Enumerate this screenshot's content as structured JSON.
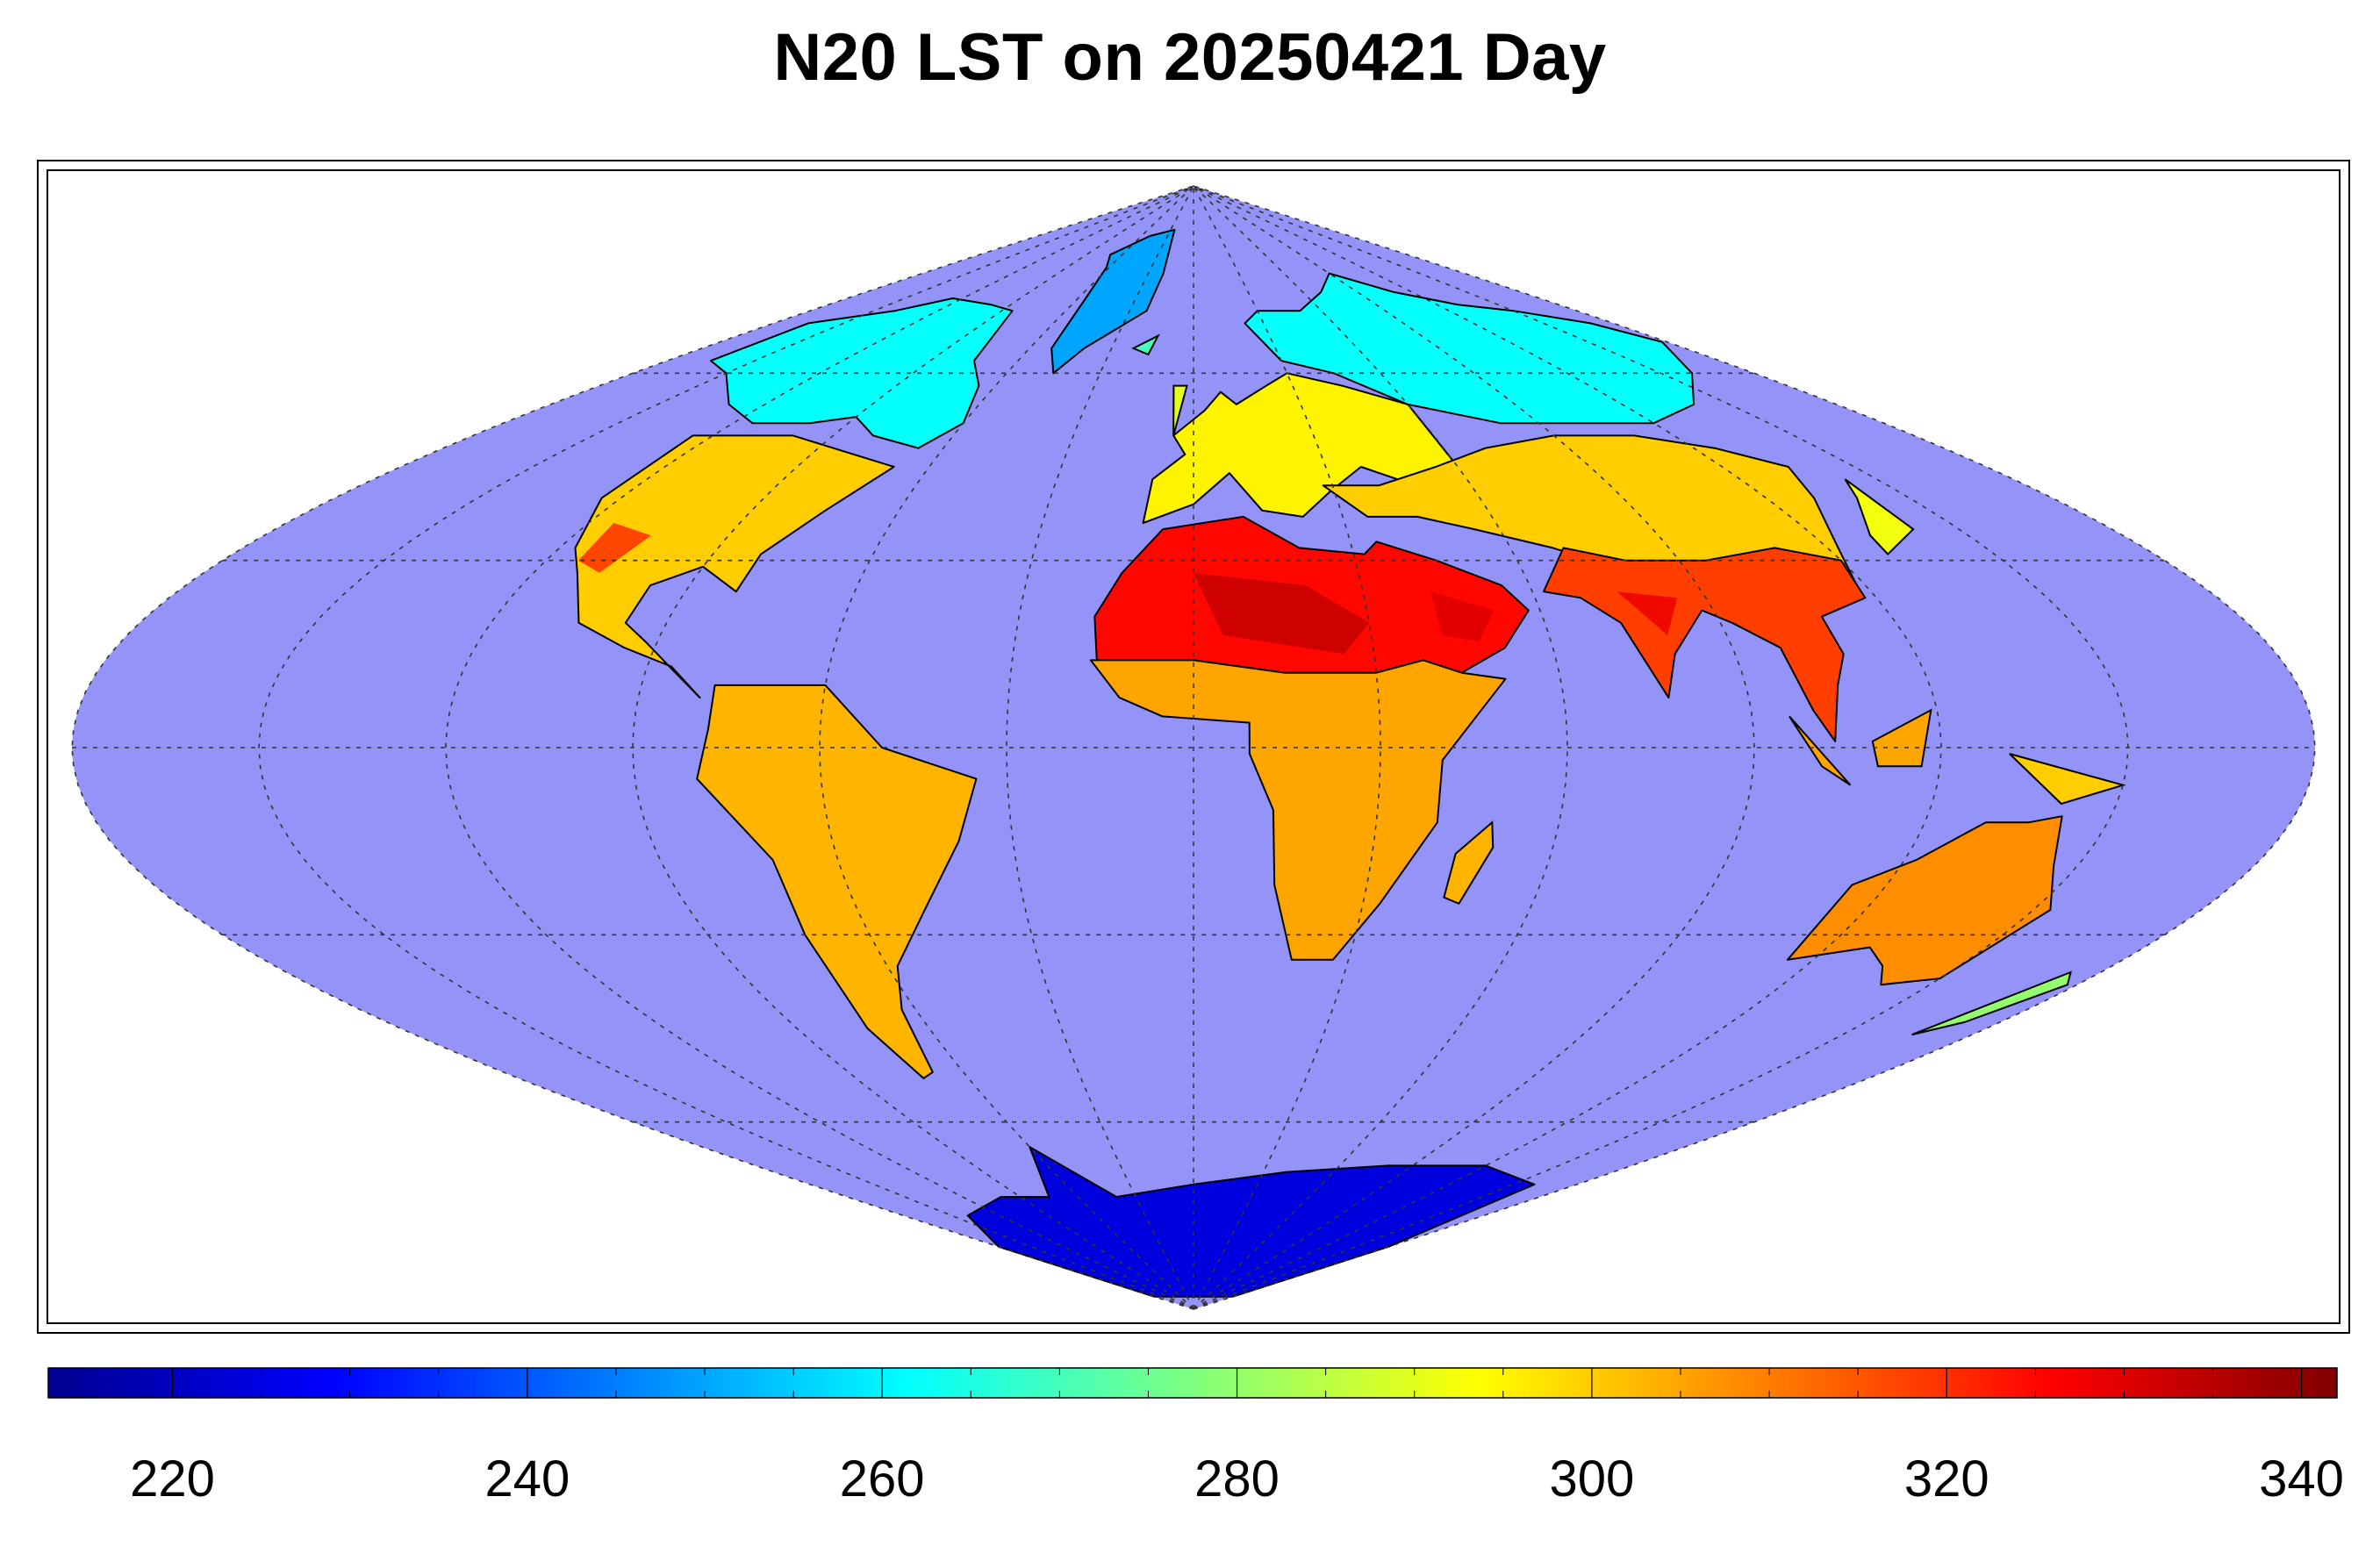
{
  "title": "N20 LST on 20250421 Day",
  "map": {
    "projection": "sinusoidal",
    "graticule": "dotted",
    "ocean_color": "#9494f8",
    "frame": "double-line"
  },
  "colorbar": {
    "colormap": "jet",
    "min": 213,
    "max": 342,
    "ticks": [
      220,
      240,
      260,
      280,
      300,
      320,
      340
    ],
    "tick_labels": [
      "220",
      "240",
      "260",
      "280",
      "300",
      "320",
      "340"
    ]
  },
  "regions": [
    {
      "name": "greenland",
      "value": 250
    },
    {
      "name": "north-america-north",
      "value": 262
    },
    {
      "name": "north-america-south",
      "value": 300
    },
    {
      "name": "south-america",
      "value": 303
    },
    {
      "name": "europe",
      "value": 295
    },
    {
      "name": "siberia",
      "value": 262
    },
    {
      "name": "asia-central",
      "value": 300
    },
    {
      "name": "sahara-arabia",
      "value": 325
    },
    {
      "name": "africa-south",
      "value": 305
    },
    {
      "name": "india-southeast-asia",
      "value": 318
    },
    {
      "name": "australia",
      "value": 308
    },
    {
      "name": "antarctica",
      "value": 225
    }
  ]
}
